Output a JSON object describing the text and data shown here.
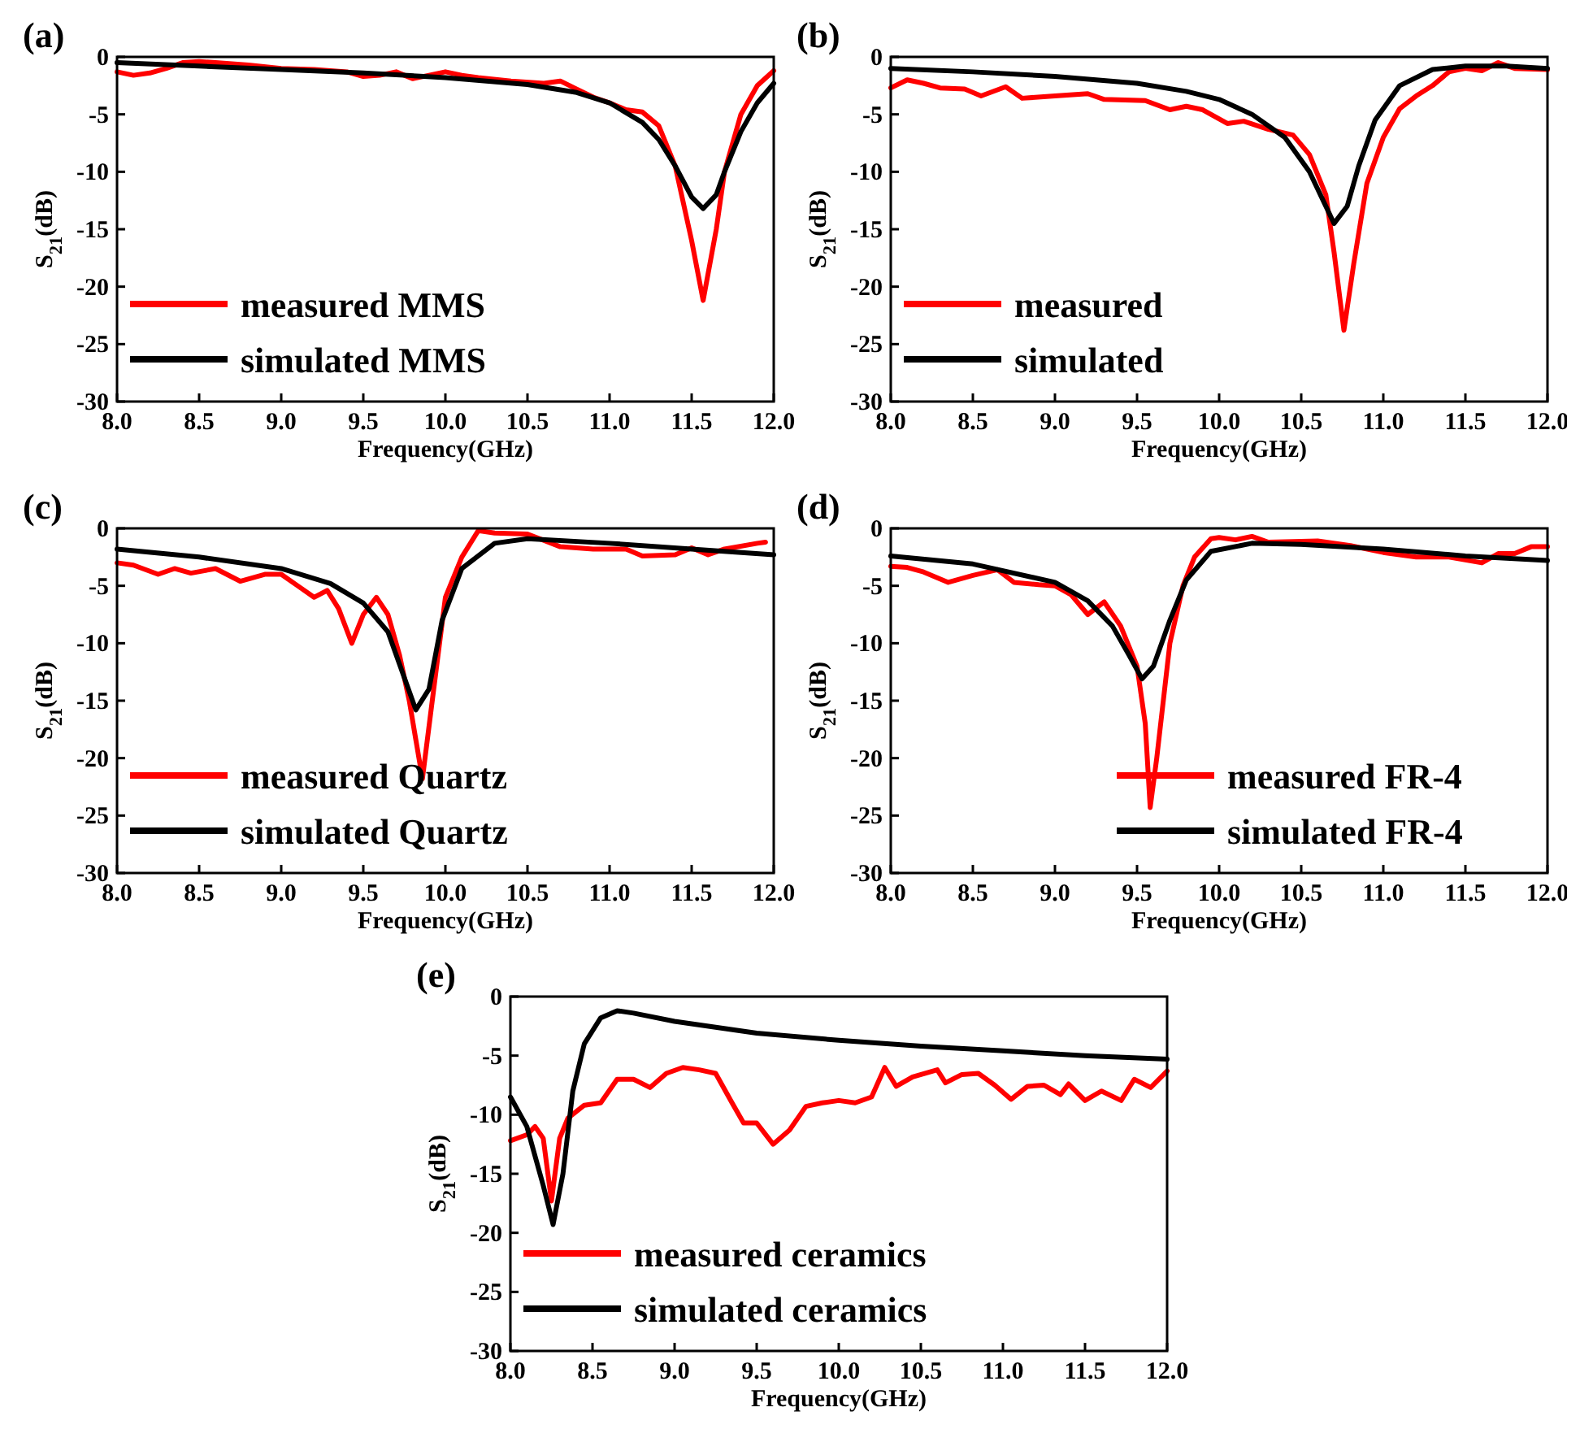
{
  "chart_data": [
    {
      "type": "line",
      "title": "(a)",
      "xlabel": "Frequency(GHz)",
      "ylabel": "S$_{21}$(dB)",
      "xlim": [
        8,
        12
      ],
      "ylim": [
        -30,
        0
      ],
      "xticks": [
        {
          "value": 8,
          "label": "8.0"
        },
        8.5,
        {
          "value": 9,
          "label": "9.0"
        },
        9.5,
        {
          "value": 10,
          "label": "10.0"
        },
        10.5,
        {
          "value": 11,
          "label": "11.0"
        },
        11.5,
        {
          "value": 12,
          "label": "12.0"
        }
      ],
      "yticks": [
        0,
        -5,
        -10,
        -15,
        -20,
        -25,
        -30
      ],
      "legend": "bottom left",
      "grid": false,
      "marker": "none",
      "line_style": "solid",
      "series": [
        {
          "name": "measured MMS",
          "color": "#ff0000",
          "x": [
            8.0,
            8.1,
            8.2,
            8.3,
            8.4,
            8.5,
            8.6,
            8.8,
            9.0,
            9.2,
            9.4,
            9.5,
            9.6,
            9.7,
            9.8,
            9.9,
            10.0,
            10.1,
            10.2,
            10.4,
            10.6,
            10.7,
            10.8,
            10.9,
            11.0,
            11.1,
            11.2,
            11.3,
            11.4,
            11.5,
            11.57,
            11.65,
            11.7,
            11.8,
            11.9,
            12.0
          ],
          "values": [
            -1.3,
            -1.6,
            -1.4,
            -1.0,
            -0.5,
            -0.4,
            -0.5,
            -0.7,
            -1.0,
            -1.1,
            -1.3,
            -1.7,
            -1.6,
            -1.3,
            -1.9,
            -1.6,
            -1.3,
            -1.6,
            -1.8,
            -2.1,
            -2.3,
            -2.1,
            -2.8,
            -3.5,
            -4.0,
            -4.6,
            -4.8,
            -6.0,
            -9.5,
            -16,
            -21.2,
            -15,
            -10,
            -5,
            -2.5,
            -1.2
          ]
        },
        {
          "name": "simulated MMS",
          "color": "#000000",
          "x": [
            8.0,
            8.5,
            9.0,
            9.5,
            10.0,
            10.5,
            10.8,
            11.0,
            11.2,
            11.3,
            11.4,
            11.5,
            11.57,
            11.65,
            11.7,
            11.8,
            11.9,
            12.0
          ],
          "values": [
            -0.5,
            -0.8,
            -1.1,
            -1.4,
            -1.8,
            -2.4,
            -3.1,
            -4.0,
            -5.7,
            -7.2,
            -9.5,
            -12.2,
            -13.2,
            -12.0,
            -10,
            -6.5,
            -4,
            -2.3
          ]
        }
      ]
    },
    {
      "type": "line",
      "title": "(b)",
      "xlabel": "Frequency(GHz)",
      "ylabel": "S$_{21}$(dB)",
      "xlim": [
        8,
        12
      ],
      "ylim": [
        -30,
        0
      ],
      "xticks": [
        {
          "value": 8,
          "label": "8.0"
        },
        8.5,
        {
          "value": 9,
          "label": "9.0"
        },
        9.5,
        {
          "value": 10,
          "label": "10.0"
        },
        10.5,
        {
          "value": 11,
          "label": "11.0"
        },
        11.5,
        {
          "value": 12,
          "label": "12.0"
        }
      ],
      "yticks": [
        0,
        -5,
        -10,
        -15,
        -20,
        -25,
        -30
      ],
      "legend": "bottom left",
      "grid": false,
      "marker": "none",
      "line_style": "solid",
      "series": [
        {
          "name": "measured",
          "color": "#ff0000",
          "x": [
            8.0,
            8.1,
            8.2,
            8.3,
            8.45,
            8.55,
            8.7,
            8.8,
            9.0,
            9.2,
            9.3,
            9.55,
            9.7,
            9.8,
            9.9,
            10.05,
            10.15,
            10.3,
            10.45,
            10.55,
            10.65,
            10.7,
            10.76,
            10.82,
            10.9,
            11.0,
            11.1,
            11.2,
            11.3,
            11.4,
            11.5,
            11.6,
            11.7,
            11.8,
            12.0
          ],
          "values": [
            -2.7,
            -2.0,
            -2.3,
            -2.7,
            -2.8,
            -3.4,
            -2.6,
            -3.6,
            -3.4,
            -3.2,
            -3.7,
            -3.8,
            -4.6,
            -4.3,
            -4.6,
            -5.8,
            -5.6,
            -6.3,
            -6.8,
            -8.5,
            -12,
            -17,
            -23.8,
            -18,
            -11,
            -7,
            -4.5,
            -3.4,
            -2.5,
            -1.3,
            -1.0,
            -1.2,
            -0.5,
            -1.0,
            -1.1
          ]
        },
        {
          "name": "simulated",
          "color": "#000000",
          "x": [
            8.0,
            8.5,
            9.0,
            9.5,
            9.8,
            10.0,
            10.2,
            10.4,
            10.55,
            10.65,
            10.7,
            10.78,
            10.85,
            10.95,
            11.1,
            11.3,
            11.5,
            11.75,
            12.0
          ],
          "values": [
            -1.0,
            -1.3,
            -1.7,
            -2.3,
            -3.0,
            -3.7,
            -5.0,
            -7.0,
            -10,
            -13,
            -14.5,
            -13,
            -9.5,
            -5.5,
            -2.5,
            -1.1,
            -0.8,
            -0.8,
            -1.0
          ]
        }
      ]
    },
    {
      "type": "line",
      "title": "(c)",
      "xlabel": "Frequency(GHz)",
      "ylabel": "S$_{21}$(dB)",
      "xlim": [
        8,
        12
      ],
      "ylim": [
        -30,
        0
      ],
      "xticks": [
        {
          "value": 8,
          "label": "8.0"
        },
        8.5,
        {
          "value": 9,
          "label": "9.0"
        },
        9.5,
        {
          "value": 10,
          "label": "10.0"
        },
        10.5,
        {
          "value": 11,
          "label": "11.0"
        },
        11.5,
        {
          "value": 12,
          "label": "12.0"
        }
      ],
      "yticks": [
        0,
        -5,
        -10,
        -15,
        -20,
        -25,
        -30
      ],
      "legend": "bottom left",
      "grid": false,
      "marker": "none",
      "line_style": "solid",
      "series": [
        {
          "name": "measured Quartz",
          "color": "#ff0000",
          "x": [
            8.0,
            8.1,
            8.25,
            8.35,
            8.45,
            8.6,
            8.75,
            8.9,
            9.0,
            9.1,
            9.2,
            9.28,
            9.35,
            9.43,
            9.5,
            9.58,
            9.65,
            9.72,
            9.78,
            9.86,
            9.92,
            10.0,
            10.1,
            10.2,
            10.3,
            10.5,
            10.7,
            10.9,
            11.1,
            11.2,
            11.4,
            11.5,
            11.6,
            11.7,
            11.9,
            11.95
          ],
          "values": [
            -3.0,
            -3.2,
            -4.0,
            -3.5,
            -3.9,
            -3.5,
            -4.6,
            -4.0,
            -4.0,
            -5.0,
            -6.0,
            -5.4,
            -7,
            -10,
            -7.5,
            -6.0,
            -7.5,
            -11,
            -15,
            -21.8,
            -15,
            -6.0,
            -2.5,
            -0.2,
            -0.4,
            -0.5,
            -1.6,
            -1.8,
            -1.8,
            -2.4,
            -2.3,
            -1.7,
            -2.3,
            -1.8,
            -1.3,
            -1.2
          ]
        },
        {
          "name": "simulated Quartz",
          "color": "#000000",
          "x": [
            8.0,
            8.5,
            9.0,
            9.3,
            9.5,
            9.65,
            9.75,
            9.82,
            9.9,
            9.98,
            10.1,
            10.3,
            10.5,
            11.0,
            11.5,
            12.0
          ],
          "values": [
            -1.8,
            -2.5,
            -3.5,
            -4.8,
            -6.5,
            -9,
            -13,
            -15.8,
            -14,
            -8,
            -3.5,
            -1.3,
            -0.9,
            -1.3,
            -1.8,
            -2.3
          ]
        }
      ]
    },
    {
      "type": "line",
      "title": "(d)",
      "xlabel": "Frequency(GHz)",
      "ylabel": "S$_{21}$(dB)",
      "xlim": [
        8,
        12
      ],
      "ylim": [
        -30,
        0
      ],
      "xticks": [
        {
          "value": 8,
          "label": "8.0"
        },
        8.5,
        {
          "value": 9,
          "label": "9.0"
        },
        9.5,
        {
          "value": 10,
          "label": "10.0"
        },
        10.5,
        {
          "value": 11,
          "label": "11.0"
        },
        11.5,
        {
          "value": 12,
          "label": "12.0"
        }
      ],
      "yticks": [
        0,
        -5,
        -10,
        -15,
        -20,
        -25,
        -30
      ],
      "legend": "bottom right",
      "grid": false,
      "marker": "none",
      "line_style": "solid",
      "series": [
        {
          "name": "measured FR-4",
          "color": "#ff0000",
          "x": [
            8.0,
            8.1,
            8.2,
            8.35,
            8.5,
            8.65,
            8.75,
            8.9,
            9.0,
            9.1,
            9.2,
            9.3,
            9.4,
            9.5,
            9.55,
            9.58,
            9.62,
            9.7,
            9.78,
            9.85,
            9.95,
            10.0,
            10.1,
            10.2,
            10.3,
            10.6,
            10.8,
            11.0,
            11.2,
            11.4,
            11.6,
            11.7,
            11.8,
            11.9,
            12.0
          ],
          "values": [
            -3.3,
            -3.4,
            -3.8,
            -4.7,
            -4.1,
            -3.6,
            -4.7,
            -4.9,
            -5.0,
            -5.8,
            -7.5,
            -6.4,
            -8.5,
            -12,
            -17,
            -24.3,
            -20,
            -10,
            -5,
            -2.5,
            -0.9,
            -0.8,
            -1.0,
            -0.7,
            -1.2,
            -1.1,
            -1.5,
            -2.1,
            -2.5,
            -2.5,
            -3.0,
            -2.2,
            -2.2,
            -1.6,
            -1.6
          ]
        },
        {
          "name": "simulated FR-4",
          "color": "#000000",
          "x": [
            8.0,
            8.5,
            9.0,
            9.2,
            9.35,
            9.45,
            9.53,
            9.6,
            9.7,
            9.8,
            9.95,
            10.2,
            10.5,
            11.0,
            11.5,
            12.0
          ],
          "values": [
            -2.4,
            -3.1,
            -4.7,
            -6.3,
            -8.5,
            -11,
            -13.1,
            -12,
            -8,
            -4.5,
            -2,
            -1.3,
            -1.4,
            -1.8,
            -2.4,
            -2.8
          ]
        }
      ]
    },
    {
      "type": "line",
      "title": "(e)",
      "xlabel": "Frequency(GHz)",
      "ylabel": "S$_{21}$(dB)",
      "xlim": [
        8,
        12
      ],
      "ylim": [
        -30,
        0
      ],
      "xticks": [
        {
          "value": 8,
          "label": "8.0"
        },
        8.5,
        {
          "value": 9,
          "label": "9.0"
        },
        9.5,
        {
          "value": 10,
          "label": "10.0"
        },
        10.5,
        {
          "value": 11,
          "label": "11.0"
        },
        11.5,
        {
          "value": 12,
          "label": "12.0"
        }
      ],
      "yticks": [
        0,
        -5,
        -10,
        -15,
        -20,
        -25,
        -30
      ],
      "legend": "bottom left",
      "grid": false,
      "marker": "none",
      "line_style": "solid",
      "series": [
        {
          "name": "measured ceramics",
          "color": "#ff0000",
          "x": [
            8.0,
            8.1,
            8.15,
            8.2,
            8.25,
            8.3,
            8.35,
            8.45,
            8.55,
            8.65,
            8.75,
            8.85,
            8.95,
            9.05,
            9.15,
            9.25,
            9.35,
            9.42,
            9.5,
            9.6,
            9.7,
            9.8,
            9.9,
            10.0,
            10.1,
            10.2,
            10.28,
            10.35,
            10.45,
            10.6,
            10.65,
            10.75,
            10.85,
            10.95,
            11.05,
            11.15,
            11.25,
            11.35,
            11.4,
            11.5,
            11.6,
            11.72,
            11.8,
            11.9,
            12.0
          ],
          "values": [
            -12.2,
            -11.7,
            -11,
            -12,
            -17.3,
            -12,
            -10.3,
            -9.2,
            -9.0,
            -7.0,
            -7.0,
            -7.7,
            -6.5,
            -6.0,
            -6.2,
            -6.5,
            -9,
            -10.7,
            -10.7,
            -12.5,
            -11.3,
            -9.3,
            -9.0,
            -8.8,
            -9.0,
            -8.5,
            -6.0,
            -7.6,
            -6.8,
            -6.2,
            -7.3,
            -6.6,
            -6.5,
            -7.5,
            -8.7,
            -7.6,
            -7.5,
            -8.3,
            -7.4,
            -8.8,
            -8.0,
            -8.8,
            -7.0,
            -7.7,
            -6.3
          ]
        },
        {
          "name": "simulated ceramics",
          "color": "#000000",
          "x": [
            8.0,
            8.1,
            8.2,
            8.26,
            8.32,
            8.38,
            8.45,
            8.55,
            8.65,
            8.75,
            9.0,
            9.5,
            10.0,
            10.5,
            11.0,
            11.5,
            12.0
          ],
          "values": [
            -8.5,
            -11,
            -16,
            -19.3,
            -15,
            -8,
            -4,
            -1.8,
            -1.2,
            -1.4,
            -2.1,
            -3.1,
            -3.7,
            -4.2,
            -4.6,
            -5.0,
            -5.3
          ]
        }
      ]
    }
  ]
}
